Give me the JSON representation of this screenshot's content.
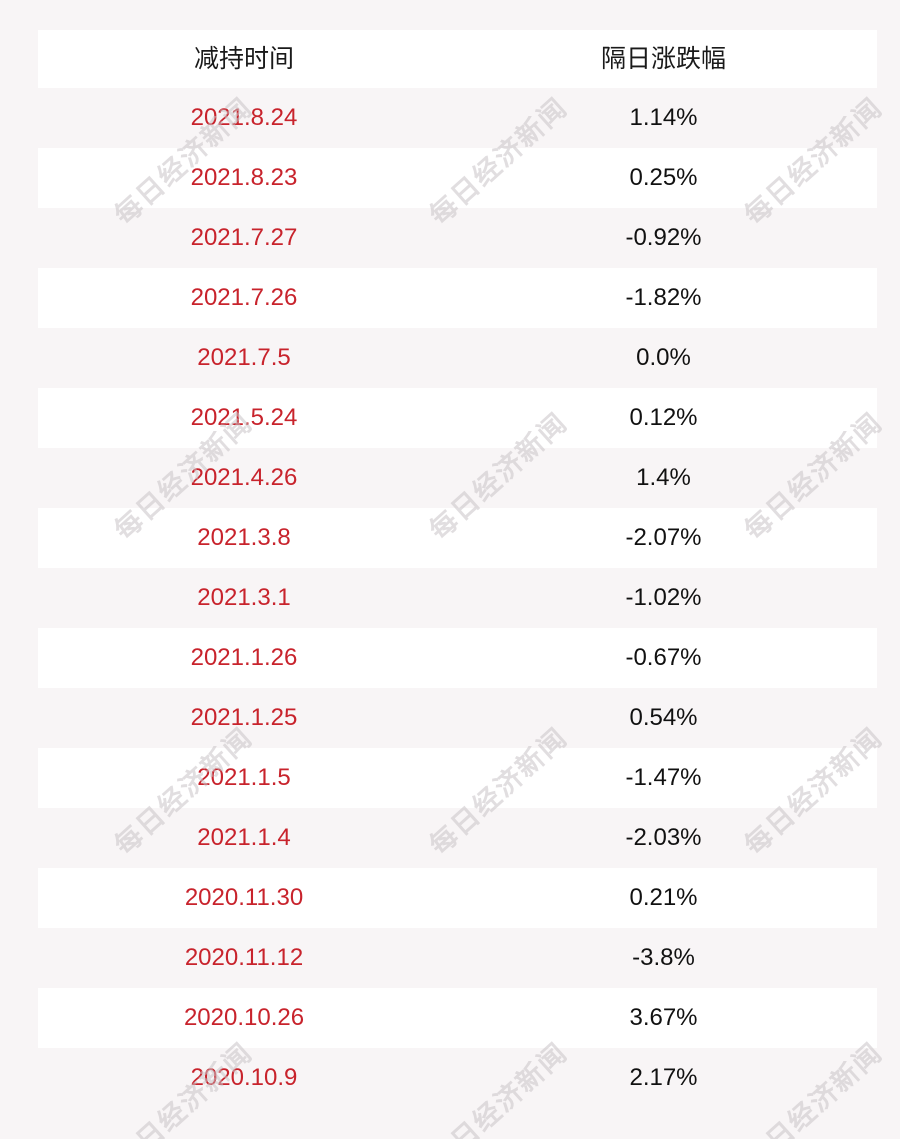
{
  "chart_data": {
    "type": "table",
    "columns": [
      "减持时间",
      "隔日涨跌幅"
    ],
    "rows": [
      [
        "2021.8.24",
        "1.14%"
      ],
      [
        "2021.8.23",
        "0.25%"
      ],
      [
        "2021.7.27",
        "-0.92%"
      ],
      [
        "2021.7.26",
        "-1.82%"
      ],
      [
        "2021.7.5",
        "0.0%"
      ],
      [
        "2021.5.24",
        "0.12%"
      ],
      [
        "2021.4.26",
        "1.4%"
      ],
      [
        "2021.3.8",
        "-2.07%"
      ],
      [
        "2021.3.1",
        "-1.02%"
      ],
      [
        "2021.1.26",
        "-0.67%"
      ],
      [
        "2021.1.25",
        "0.54%"
      ],
      [
        "2021.1.5",
        "-1.47%"
      ],
      [
        "2021.1.4",
        "-2.03%"
      ],
      [
        "2020.11.30",
        "0.21%"
      ],
      [
        "2020.11.12",
        "-3.8%"
      ],
      [
        "2020.10.26",
        "3.67%"
      ],
      [
        "2020.10.9",
        "2.17%"
      ]
    ]
  },
  "watermark": "每日经济新闻",
  "colors": {
    "date_text": "#c8232c",
    "value_text": "#111111",
    "row_alt": "#ffffff",
    "background": "#f8f5f6"
  }
}
